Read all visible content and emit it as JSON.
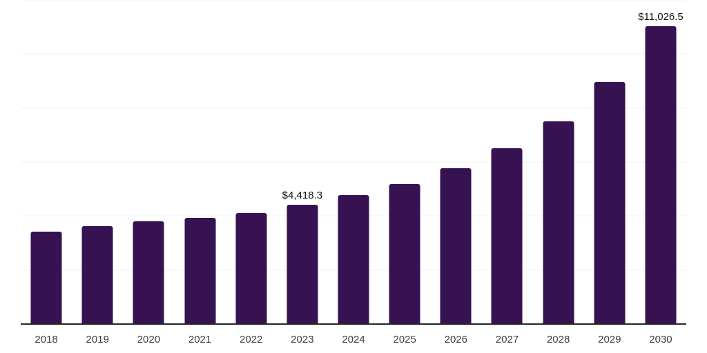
{
  "chart_data": {
    "type": "bar",
    "title": "",
    "categories": [
      "2018",
      "2019",
      "2020",
      "2021",
      "2022",
      "2023",
      "2024",
      "2025",
      "2026",
      "2027",
      "2028",
      "2029",
      "2030"
    ],
    "values": [
      3425,
      3630,
      3800,
      3940,
      4120,
      4418.3,
      4765,
      5190,
      5765,
      6510,
      7515,
      8960,
      11026.5
    ],
    "data_labels": [
      {
        "category": "2023",
        "text": "$4,418.3"
      },
      {
        "category": "2030",
        "text": "$11,026.5"
      }
    ],
    "xlabel": "",
    "ylabel": "",
    "ylim": [
      0,
      12000
    ],
    "gridline_interval": 2000,
    "grid": true,
    "y_axis_tick_labels_visible": false,
    "legend": "none",
    "colors": {
      "background": "#ffffff",
      "bar": "#371252",
      "axis_line": "#262626",
      "gridline": "#f2f2f2",
      "tick_label": "#3d3d3d",
      "data_label": "#111111"
    }
  }
}
